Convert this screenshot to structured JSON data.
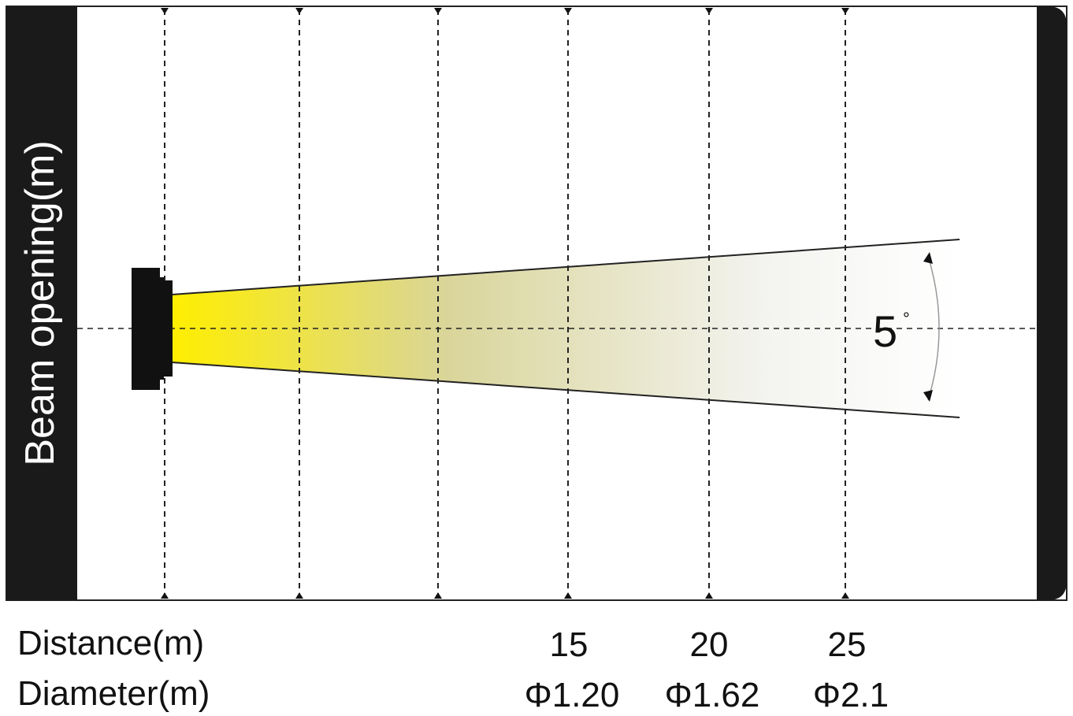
{
  "title": "",
  "beam_label": "Beam opening(m)",
  "angle": {
    "value": "5",
    "unit": "°"
  },
  "rows": {
    "distance_label": "Distance(m)",
    "diameter_label": "Diameter(m)"
  },
  "measurements": [
    {
      "distance": "15",
      "diameter": "Φ1.20"
    },
    {
      "distance": "20",
      "diameter": "Φ1.62"
    },
    {
      "distance": "25",
      "diameter": "Φ2.1"
    }
  ],
  "colors": {
    "beam_start": "#ffee00",
    "beam_end": "#ffffff",
    "frame": "#1a1a1a",
    "guides": "#222222"
  }
}
